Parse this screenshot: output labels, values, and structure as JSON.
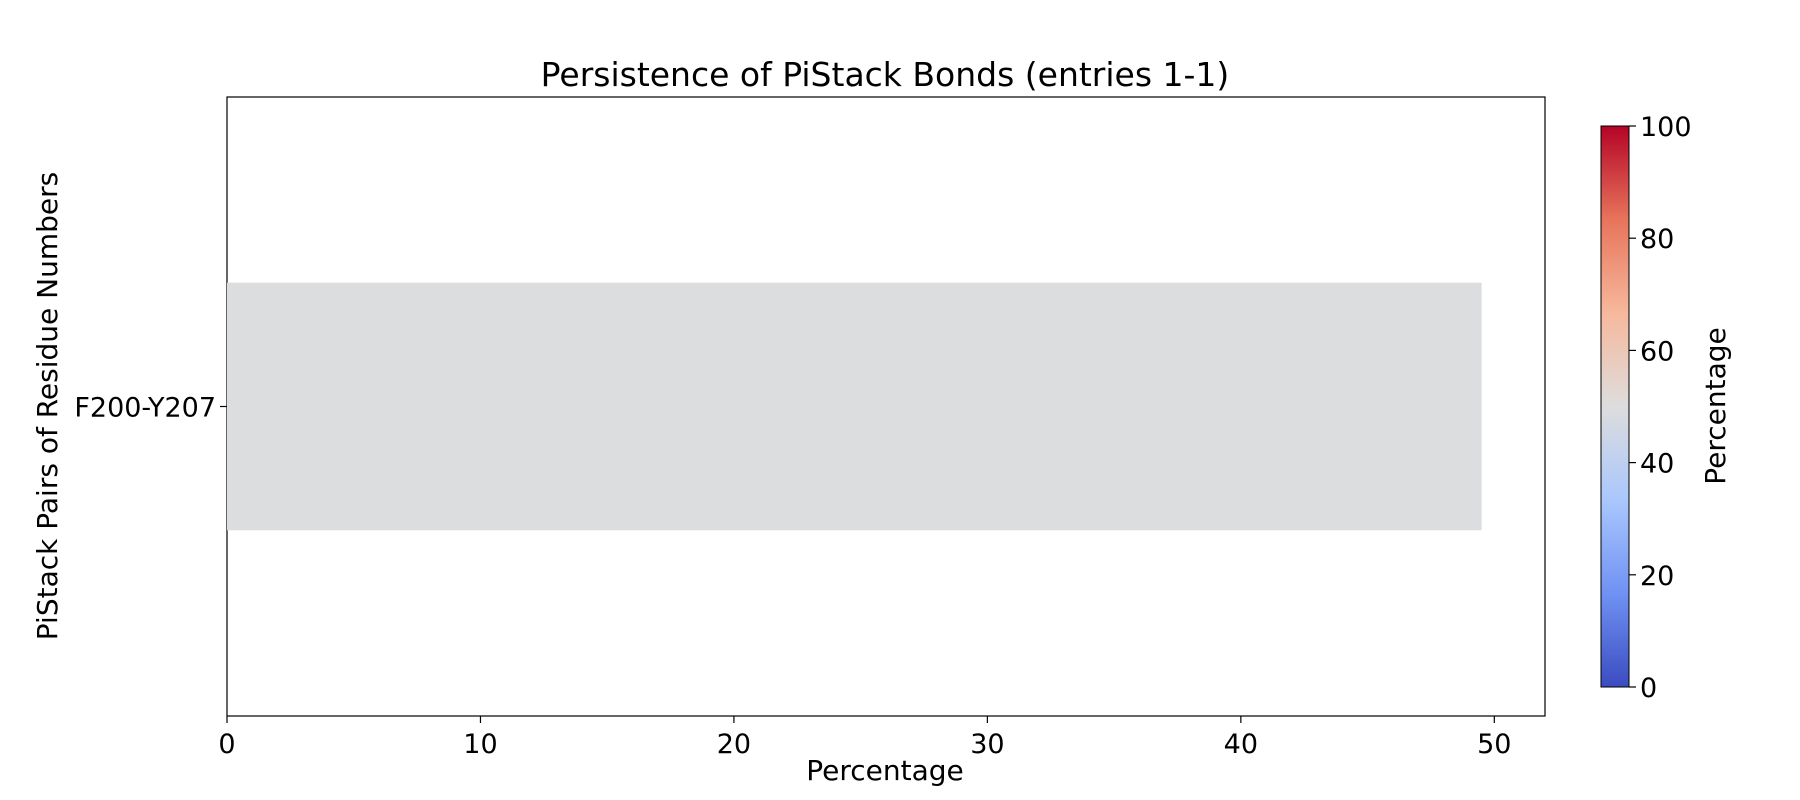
{
  "chart_data": {
    "type": "bar",
    "orientation": "horizontal",
    "title": "Persistence of PiStack Bonds (entries 1-1)",
    "xlabel": "Percentage",
    "ylabel": "PiStack Pairs of Residue Numbers",
    "categories": [
      "F200-Y207"
    ],
    "values": [
      49.5
    ],
    "xlim": [
      0,
      52
    ],
    "xticks": [
      0,
      10,
      20,
      30,
      40,
      50
    ],
    "grid": false,
    "legend": "none",
    "bar_color": "#dcdddf",
    "colorbar": {
      "label": "Percentage",
      "colormap": "coolwarm",
      "range": [
        0,
        100
      ],
      "ticks": [
        0,
        20,
        40,
        60,
        80,
        100
      ],
      "color_stops": [
        "#3b4cc0",
        "#6f92f3",
        "#aac7fd",
        "#dddddd",
        "#f7b89c",
        "#e7745b",
        "#b40426"
      ]
    }
  }
}
